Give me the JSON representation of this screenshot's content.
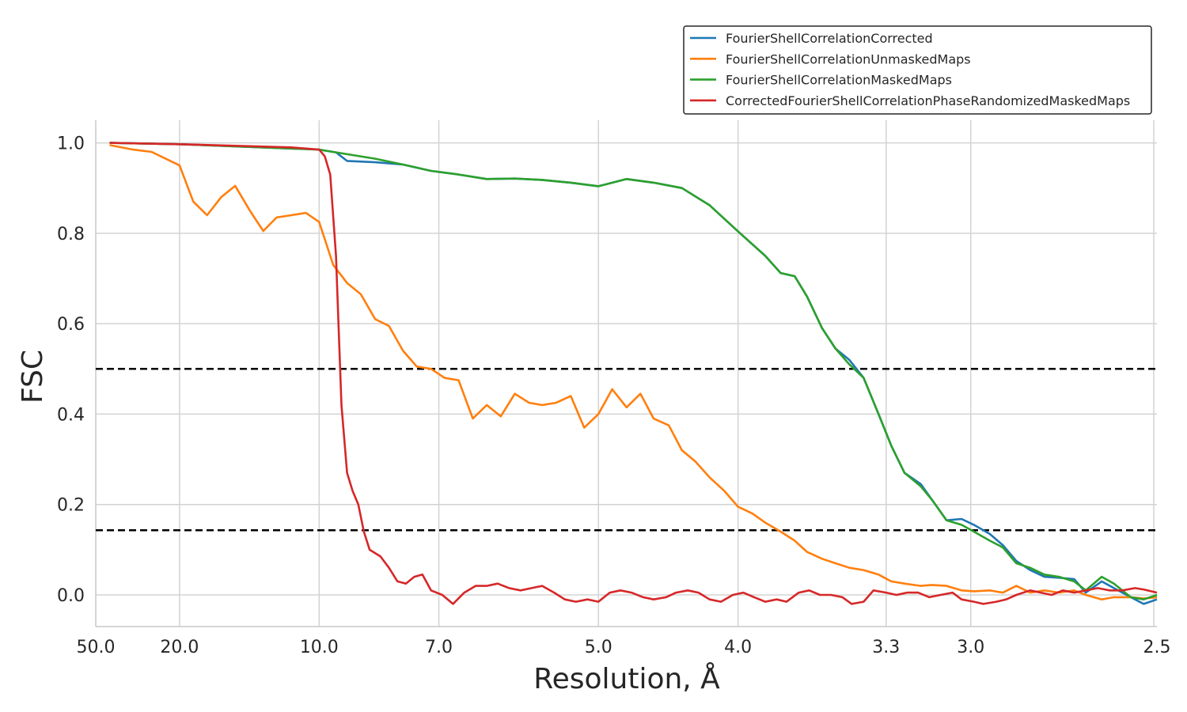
{
  "chart_data": {
    "type": "line",
    "xlabel": "Resolution, Å",
    "ylabel": "FSC",
    "x_scale": "reciprocal",
    "xlim": [
      50.0,
      2.5
    ],
    "ylim": [
      -0.07,
      1.05
    ],
    "x_ticks": [
      {
        "value": 50.0,
        "label": "50.0"
      },
      {
        "value": 20.0,
        "label": "20.0"
      },
      {
        "value": 10.0,
        "label": "10.0"
      },
      {
        "value": 7.0,
        "label": "7.0"
      },
      {
        "value": 5.0,
        "label": "5.0"
      },
      {
        "value": 4.0,
        "label": "4.0"
      },
      {
        "value": 3.3,
        "label": "3.3"
      },
      {
        "value": 3.0,
        "label": "3.0"
      },
      {
        "value": 2.5,
        "label": "2.5"
      }
    ],
    "y_ticks": [
      {
        "value": 0.0,
        "label": "0.0"
      },
      {
        "value": 0.2,
        "label": "0.2"
      },
      {
        "value": 0.4,
        "label": "0.4"
      },
      {
        "value": 0.6,
        "label": "0.6"
      },
      {
        "value": 0.8,
        "label": "0.8"
      },
      {
        "value": 1.0,
        "label": "1.0"
      }
    ],
    "grid": true,
    "legend_position": "top-right",
    "thresholds": [
      {
        "y": 0.5,
        "style": "dashed",
        "color": "#000000"
      },
      {
        "y": 0.143,
        "style": "dashed",
        "color": "#000000"
      }
    ],
    "series": [
      {
        "name": "FourierShellCorrelationCorrected",
        "color": "#1f77b4",
        "points": [
          [
            40.0,
            1.0
          ],
          [
            20.0,
            0.997
          ],
          [
            10.0,
            0.985
          ],
          [
            9.43,
            0.979
          ],
          [
            9.09,
            0.96
          ],
          [
            8.33,
            0.957
          ],
          [
            7.69,
            0.952
          ],
          [
            7.14,
            0.938
          ],
          [
            6.67,
            0.93
          ],
          [
            6.25,
            0.92
          ],
          [
            5.88,
            0.921
          ],
          [
            5.56,
            0.918
          ],
          [
            5.26,
            0.912
          ],
          [
            5.0,
            0.904
          ],
          [
            4.76,
            0.92
          ],
          [
            4.55,
            0.912
          ],
          [
            4.35,
            0.9
          ],
          [
            4.17,
            0.862
          ],
          [
            4.0,
            0.804
          ],
          [
            3.85,
            0.75
          ],
          [
            3.77,
            0.712
          ],
          [
            3.7,
            0.705
          ],
          [
            3.64,
            0.66
          ],
          [
            3.57,
            0.59
          ],
          [
            3.51,
            0.545
          ],
          [
            3.45,
            0.52
          ],
          [
            3.39,
            0.48
          ],
          [
            3.33,
            0.4
          ],
          [
            3.28,
            0.33
          ],
          [
            3.23,
            0.27
          ],
          [
            3.17,
            0.245
          ],
          [
            3.13,
            0.21
          ],
          [
            3.08,
            0.165
          ],
          [
            3.03,
            0.168
          ],
          [
            2.99,
            0.155
          ],
          [
            2.94,
            0.135
          ],
          [
            2.9,
            0.11
          ],
          [
            2.86,
            0.075
          ],
          [
            2.82,
            0.055
          ],
          [
            2.78,
            0.04
          ],
          [
            2.74,
            0.038
          ],
          [
            2.7,
            0.035
          ],
          [
            2.67,
            0.005
          ],
          [
            2.63,
            0.03
          ],
          [
            2.6,
            0.015
          ],
          [
            2.56,
            -0.005
          ],
          [
            2.53,
            -0.02
          ],
          [
            2.5,
            -0.01
          ]
        ]
      },
      {
        "name": "FourierShellCorrelationUnmaskedMaps",
        "color": "#ff7f0e",
        "points": [
          [
            40.0,
            0.995
          ],
          [
            30.0,
            0.985
          ],
          [
            25.0,
            0.98
          ],
          [
            20.0,
            0.95
          ],
          [
            18.2,
            0.87
          ],
          [
            16.7,
            0.84
          ],
          [
            15.4,
            0.88
          ],
          [
            14.3,
            0.905
          ],
          [
            13.3,
            0.85
          ],
          [
            12.5,
            0.805
          ],
          [
            11.8,
            0.835
          ],
          [
            11.1,
            0.84
          ],
          [
            10.5,
            0.845
          ],
          [
            10.0,
            0.825
          ],
          [
            9.52,
            0.73
          ],
          [
            9.09,
            0.69
          ],
          [
            8.7,
            0.665
          ],
          [
            8.33,
            0.61
          ],
          [
            8.0,
            0.595
          ],
          [
            7.69,
            0.54
          ],
          [
            7.41,
            0.505
          ],
          [
            7.14,
            0.5
          ],
          [
            6.9,
            0.48
          ],
          [
            6.67,
            0.475
          ],
          [
            6.45,
            0.39
          ],
          [
            6.25,
            0.42
          ],
          [
            6.06,
            0.395
          ],
          [
            5.88,
            0.445
          ],
          [
            5.71,
            0.425
          ],
          [
            5.56,
            0.42
          ],
          [
            5.41,
            0.425
          ],
          [
            5.26,
            0.44
          ],
          [
            5.13,
            0.37
          ],
          [
            5.0,
            0.4
          ],
          [
            4.88,
            0.455
          ],
          [
            4.76,
            0.415
          ],
          [
            4.65,
            0.445
          ],
          [
            4.55,
            0.39
          ],
          [
            4.44,
            0.375
          ],
          [
            4.35,
            0.32
          ],
          [
            4.26,
            0.295
          ],
          [
            4.17,
            0.26
          ],
          [
            4.08,
            0.23
          ],
          [
            4.0,
            0.195
          ],
          [
            3.92,
            0.18
          ],
          [
            3.85,
            0.16
          ],
          [
            3.77,
            0.14
          ],
          [
            3.7,
            0.12
          ],
          [
            3.64,
            0.095
          ],
          [
            3.57,
            0.08
          ],
          [
            3.51,
            0.07
          ],
          [
            3.45,
            0.06
          ],
          [
            3.39,
            0.055
          ],
          [
            3.33,
            0.045
          ],
          [
            3.28,
            0.03
          ],
          [
            3.23,
            0.025
          ],
          [
            3.17,
            0.02
          ],
          [
            3.13,
            0.022
          ],
          [
            3.08,
            0.02
          ],
          [
            3.03,
            0.01
          ],
          [
            2.99,
            0.008
          ],
          [
            2.94,
            0.01
          ],
          [
            2.9,
            0.005
          ],
          [
            2.86,
            0.02
          ],
          [
            2.82,
            0.005
          ],
          [
            2.78,
            0.01
          ],
          [
            2.74,
            0.005
          ],
          [
            2.7,
            0.01
          ],
          [
            2.67,
            0.0
          ],
          [
            2.63,
            -0.01
          ],
          [
            2.6,
            -0.005
          ],
          [
            2.56,
            -0.005
          ],
          [
            2.53,
            -0.008
          ],
          [
            2.5,
            -0.005
          ]
        ]
      },
      {
        "name": "FourierShellCorrelationMaskedMaps",
        "color": "#2ca02c",
        "points": [
          [
            40.0,
            1.0
          ],
          [
            20.0,
            0.997
          ],
          [
            10.0,
            0.985
          ],
          [
            9.09,
            0.975
          ],
          [
            8.33,
            0.965
          ],
          [
            7.69,
            0.952
          ],
          [
            7.14,
            0.938
          ],
          [
            6.67,
            0.93
          ],
          [
            6.25,
            0.92
          ],
          [
            5.88,
            0.921
          ],
          [
            5.56,
            0.918
          ],
          [
            5.26,
            0.912
          ],
          [
            5.0,
            0.904
          ],
          [
            4.76,
            0.92
          ],
          [
            4.55,
            0.912
          ],
          [
            4.35,
            0.9
          ],
          [
            4.17,
            0.862
          ],
          [
            4.0,
            0.804
          ],
          [
            3.85,
            0.75
          ],
          [
            3.77,
            0.712
          ],
          [
            3.7,
            0.705
          ],
          [
            3.64,
            0.66
          ],
          [
            3.57,
            0.59
          ],
          [
            3.51,
            0.545
          ],
          [
            3.45,
            0.51
          ],
          [
            3.39,
            0.48
          ],
          [
            3.33,
            0.4
          ],
          [
            3.28,
            0.33
          ],
          [
            3.23,
            0.27
          ],
          [
            3.17,
            0.24
          ],
          [
            3.13,
            0.21
          ],
          [
            3.08,
            0.165
          ],
          [
            3.03,
            0.155
          ],
          [
            2.99,
            0.14
          ],
          [
            2.94,
            0.12
          ],
          [
            2.9,
            0.105
          ],
          [
            2.86,
            0.07
          ],
          [
            2.82,
            0.06
          ],
          [
            2.78,
            0.045
          ],
          [
            2.74,
            0.04
          ],
          [
            2.7,
            0.03
          ],
          [
            2.67,
            0.01
          ],
          [
            2.63,
            0.04
          ],
          [
            2.6,
            0.025
          ],
          [
            2.56,
            -0.005
          ],
          [
            2.53,
            -0.01
          ],
          [
            2.5,
            0.0
          ]
        ]
      },
      {
        "name": "CorrectedFourierShellCorrelationPhaseRandomizedMaskedMaps",
        "color": "#d62728",
        "points": [
          [
            40.0,
            1.0
          ],
          [
            20.0,
            0.997
          ],
          [
            11.1,
            0.99
          ],
          [
            10.0,
            0.985
          ],
          [
            9.8,
            0.97
          ],
          [
            9.62,
            0.93
          ],
          [
            9.43,
            0.75
          ],
          [
            9.26,
            0.42
          ],
          [
            9.09,
            0.27
          ],
          [
            8.93,
            0.23
          ],
          [
            8.77,
            0.2
          ],
          [
            8.62,
            0.14
          ],
          [
            8.47,
            0.1
          ],
          [
            8.2,
            0.085
          ],
          [
            8.0,
            0.06
          ],
          [
            7.81,
            0.03
          ],
          [
            7.63,
            0.025
          ],
          [
            7.46,
            0.04
          ],
          [
            7.3,
            0.045
          ],
          [
            7.14,
            0.01
          ],
          [
            6.94,
            0.0
          ],
          [
            6.76,
            -0.02
          ],
          [
            6.58,
            0.005
          ],
          [
            6.41,
            0.02
          ],
          [
            6.25,
            0.02
          ],
          [
            6.1,
            0.025
          ],
          [
            5.95,
            0.015
          ],
          [
            5.81,
            0.01
          ],
          [
            5.68,
            0.015
          ],
          [
            5.56,
            0.02
          ],
          [
            5.43,
            0.005
          ],
          [
            5.32,
            -0.01
          ],
          [
            5.21,
            -0.015
          ],
          [
            5.1,
            -0.01
          ],
          [
            5.0,
            -0.015
          ],
          [
            4.9,
            0.005
          ],
          [
            4.81,
            0.01
          ],
          [
            4.72,
            0.005
          ],
          [
            4.63,
            -0.005
          ],
          [
            4.55,
            -0.01
          ],
          [
            4.46,
            -0.005
          ],
          [
            4.39,
            0.005
          ],
          [
            4.31,
            0.01
          ],
          [
            4.24,
            0.005
          ],
          [
            4.17,
            -0.01
          ],
          [
            4.1,
            -0.015
          ],
          [
            4.03,
            0.0
          ],
          [
            3.97,
            0.005
          ],
          [
            3.91,
            -0.005
          ],
          [
            3.85,
            -0.015
          ],
          [
            3.79,
            -0.01
          ],
          [
            3.74,
            -0.015
          ],
          [
            3.68,
            0.005
          ],
          [
            3.63,
            0.01
          ],
          [
            3.58,
            0.0
          ],
          [
            3.53,
            0.0
          ],
          [
            3.48,
            -0.005
          ],
          [
            3.44,
            -0.02
          ],
          [
            3.39,
            -0.015
          ],
          [
            3.35,
            0.01
          ],
          [
            3.3,
            0.005
          ],
          [
            3.26,
            0.0
          ],
          [
            3.22,
            0.005
          ],
          [
            3.18,
            0.005
          ],
          [
            3.14,
            -0.005
          ],
          [
            3.1,
            0.0
          ],
          [
            3.06,
            0.005
          ],
          [
            3.03,
            -0.01
          ],
          [
            2.99,
            -0.015
          ],
          [
            2.96,
            -0.02
          ],
          [
            2.92,
            -0.015
          ],
          [
            2.89,
            -0.01
          ],
          [
            2.86,
            0.0
          ],
          [
            2.82,
            0.01
          ],
          [
            2.79,
            0.005
          ],
          [
            2.76,
            0.0
          ],
          [
            2.73,
            0.01
          ],
          [
            2.7,
            0.005
          ],
          [
            2.67,
            0.01
          ],
          [
            2.64,
            0.015
          ],
          [
            2.61,
            0.01
          ],
          [
            2.58,
            0.01
          ],
          [
            2.55,
            0.015
          ],
          [
            2.53,
            0.012
          ],
          [
            2.5,
            0.005
          ]
        ]
      }
    ]
  }
}
